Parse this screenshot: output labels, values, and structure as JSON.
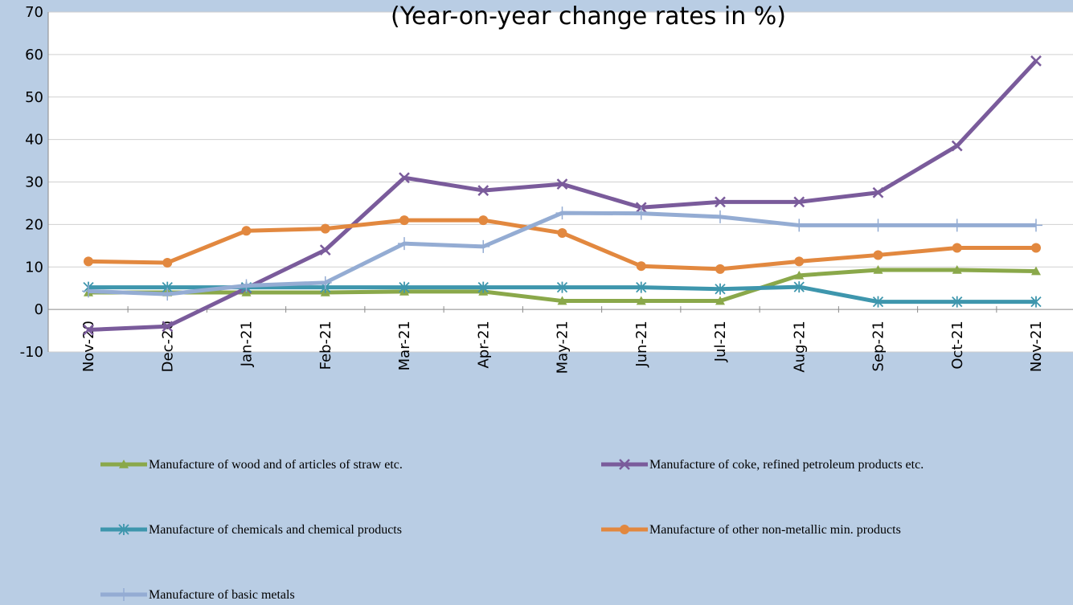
{
  "chart_data": {
    "type": "line",
    "title": "(Year-on-year change rates in %)",
    "xlabel": "",
    "ylabel": "",
    "ylim": [
      -10,
      70
    ],
    "yticks": [
      -10,
      0,
      10,
      20,
      30,
      40,
      50,
      60,
      70
    ],
    "grid": true,
    "legend_position": "bottom",
    "categories": [
      "Nov-20",
      "Dec-20",
      "Jan-21",
      "Feb-21",
      "Mar-21",
      "Apr-21",
      "May-21",
      "Jun-21",
      "Jul-21",
      "Aug-21",
      "Sep-21",
      "Oct-21",
      "Nov-21"
    ],
    "series": [
      {
        "name": "Manufacture of wood and of articles of straw etc.",
        "color": "#8aa84a",
        "marker": "triangle",
        "values": [
          4.0,
          4.0,
          4.0,
          4.0,
          4.2,
          4.2,
          2.0,
          2.0,
          2.0,
          8.0,
          9.3,
          9.3,
          9.0
        ]
      },
      {
        "name": "Manufacture of coke, refined petroleum products etc.",
        "color": "#7a5b9b",
        "marker": "x",
        "values": [
          -4.8,
          -4.0,
          5.0,
          14.0,
          31.0,
          28.0,
          29.5,
          24.0,
          25.3,
          25.3,
          27.5,
          38.5,
          58.5
        ]
      },
      {
        "name": "Manufacture of chemicals and chemical products",
        "color": "#3e96ad",
        "marker": "asterisk",
        "values": [
          5.2,
          5.2,
          5.2,
          5.2,
          5.2,
          5.2,
          5.2,
          5.2,
          4.8,
          5.3,
          1.8,
          1.8,
          1.8
        ]
      },
      {
        "name": "Manufacture of other non-metallic min. products",
        "color": "#e2883f",
        "marker": "circle",
        "values": [
          11.3,
          11.0,
          18.5,
          19.0,
          21.0,
          21.0,
          18.0,
          10.2,
          9.5,
          11.3,
          12.8,
          14.5,
          14.5
        ]
      },
      {
        "name": "Manufacture of basic metals",
        "color": "#94acd3",
        "marker": "plus",
        "values": [
          4.3,
          3.6,
          5.6,
          6.3,
          15.5,
          14.8,
          22.7,
          22.6,
          21.8,
          19.8,
          19.8,
          19.8,
          19.8
        ]
      }
    ]
  }
}
